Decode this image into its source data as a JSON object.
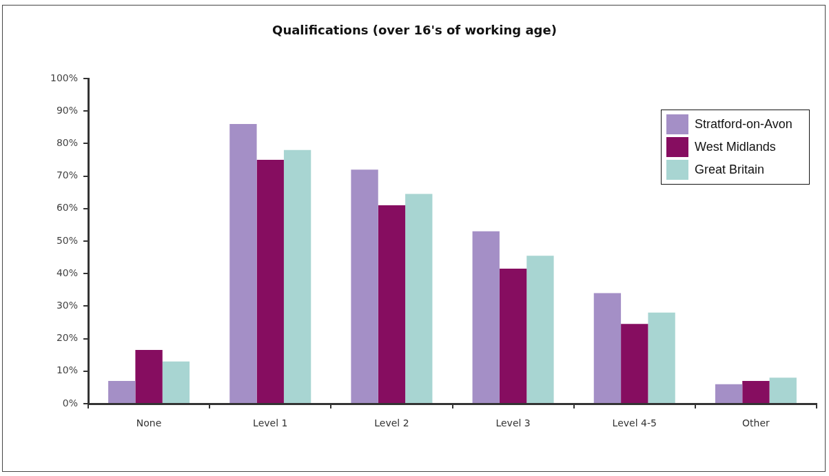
{
  "chart_data": {
    "type": "bar",
    "title": "Qualifications (over 16's of working age)",
    "categories": [
      "None",
      "Level 1",
      "Level 2",
      "Level 3",
      "Level 4-5",
      "Other"
    ],
    "series": [
      {
        "name": "Stratford-on-Avon",
        "color": "#a48fc6",
        "values": [
          7,
          86,
          72,
          53,
          34,
          6
        ]
      },
      {
        "name": "West Midlands",
        "color": "#860d60",
        "values": [
          16.5,
          75,
          61,
          41.5,
          24.5,
          7
        ]
      },
      {
        "name": "Great Britain",
        "color": "#a8d5d2",
        "values": [
          13,
          78,
          64.5,
          45.5,
          28,
          8
        ]
      }
    ],
    "ylim": [
      0,
      100
    ],
    "yticks": [
      {
        "value": 0,
        "label": "0%"
      },
      {
        "value": 10,
        "label": "10%"
      },
      {
        "value": 20,
        "label": "20%"
      },
      {
        "value": 30,
        "label": "30%"
      },
      {
        "value": 40,
        "label": "40%"
      },
      {
        "value": 50,
        "label": "50%"
      },
      {
        "value": 60,
        "label": "60%"
      },
      {
        "value": 70,
        "label": "70%"
      },
      {
        "value": 80,
        "label": "80%"
      },
      {
        "value": 90,
        "label": "90%"
      },
      {
        "value": 100,
        "label": "100%"
      }
    ],
    "grid": false,
    "legend": "top right"
  }
}
